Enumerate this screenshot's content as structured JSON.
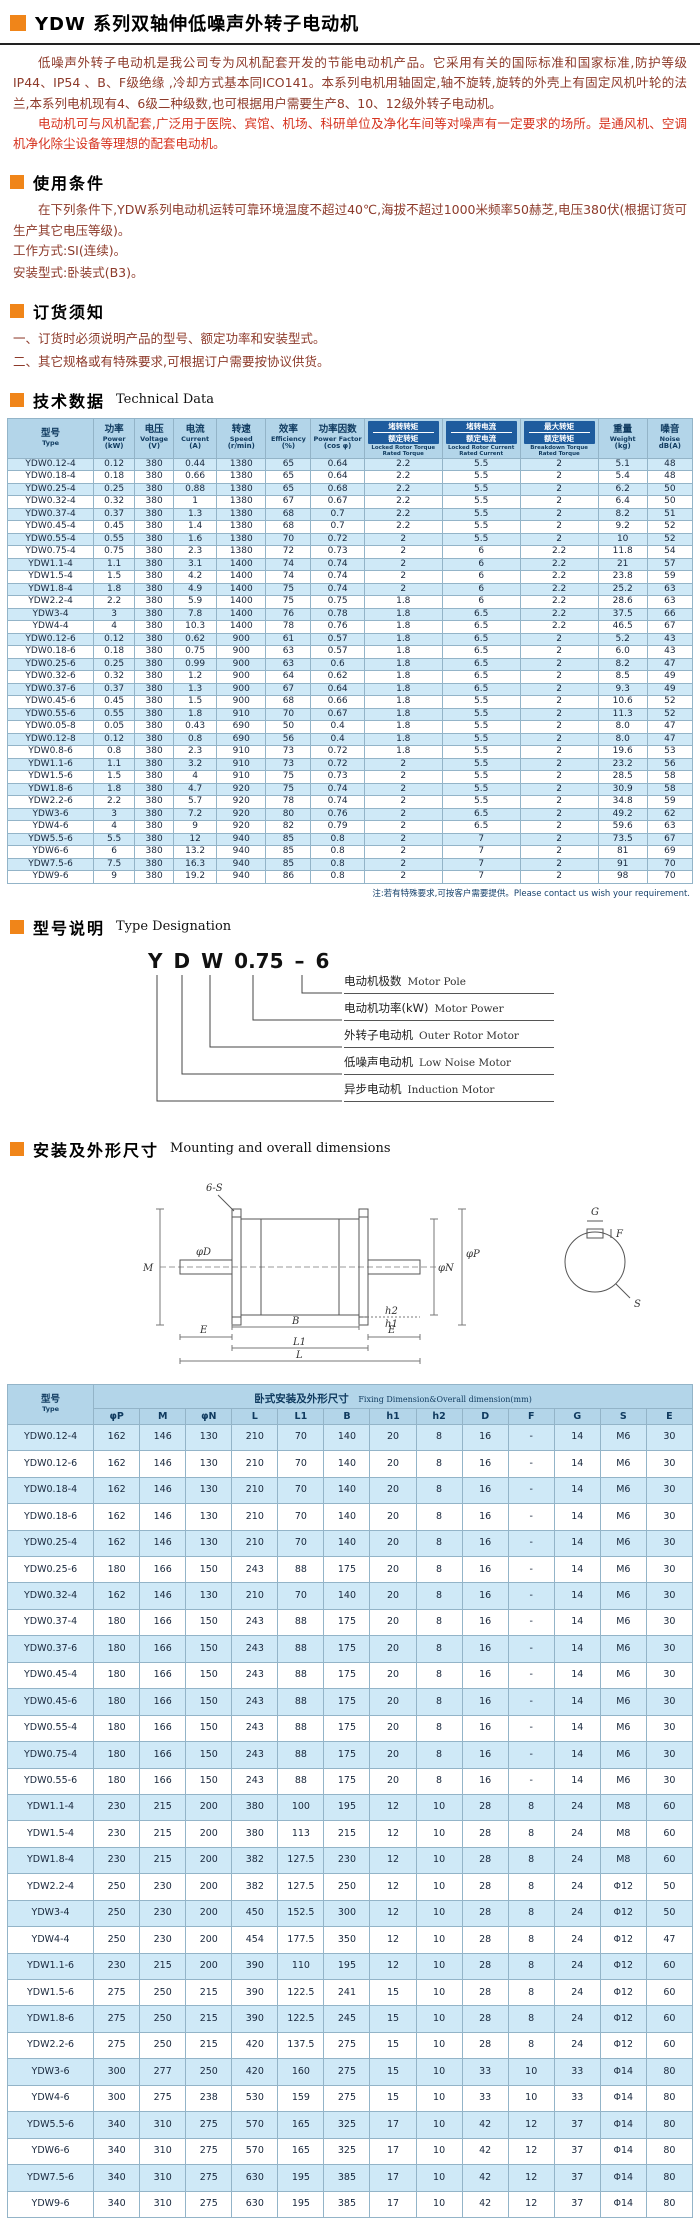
{
  "colors": {
    "accent_orange": "#f08519",
    "text_maroon": "#8d3a2a",
    "text_red": "#d6321e",
    "table_header_blue": "#b3d5e9",
    "table_row_blue": "#cfe9f7",
    "ratio_box_blue": "#1e5c9e"
  },
  "page": {
    "title": "YDW 系列双轴伸低噪声外转子电动机",
    "intro_p1": "低噪声外转子电动机是我公司专为风机配套开发的节能电动机产品。它采用有关的国际标准和国家标准,防护等级IP44、IP54 、B、F级绝缘 ,冷却方式基本同ICO141。本系列电机用轴固定,轴不旋转,旋转的外壳上有固定风机叶轮的法兰,本系列电机现有4、6级二种级数,也可根据用户需要生产8、10、12级外转子电动机。",
    "intro_p2": "电动机可与风机配套,广泛用于医院、宾馆、机场、科研单位及净化车间等对噪声有一定要求的场所。是通风机、空调机净化除尘设备等理想的配套电动机。"
  },
  "sections": {
    "usage": {
      "title": "使用条件",
      "body": "在下列条件下,YDW系列电动机运转可靠环境温度不超过40℃,海拔不超过1000米频率50赫芝,电压380伏(根据订货可生产其它电压等级)。",
      "work_mode": "工作方式:SI(连续)。",
      "mount_type": "安装型式:卧装式(B3)。"
    },
    "ordering": {
      "title": "订货须知",
      "line1": "一、订货时必须说明产品的型号、额定功率和安装型式。",
      "line2": "二、其它规格或有特殊要求,可根据订户需要按协议供货。"
    },
    "technical": {
      "title": "技术数据",
      "title_en": "Technical Data",
      "note": "注:若有特殊要求,可按客户需要提供。Please contact us wish your requirement."
    },
    "designation": {
      "title": "型号说明",
      "title_en": "Type Designation",
      "code": [
        "Y",
        "D",
        "W",
        "0.75",
        "–",
        "6"
      ],
      "labels": [
        {
          "zh": "电动机极数",
          "en": "Motor Pole"
        },
        {
          "zh": "电动机功率(kW)",
          "en": "Motor Power"
        },
        {
          "zh": "外转子电动机",
          "en": "Outer Rotor Motor"
        },
        {
          "zh": "低噪声电动机",
          "en": "Low Noise Motor"
        },
        {
          "zh": "异步电动机",
          "en": "Induction Motor"
        }
      ]
    },
    "mounting": {
      "title": "安装及外形尺寸",
      "title_en": "Mounting and overall dimensions"
    }
  },
  "drawing": {
    "six_s": "6-S",
    "m": "M",
    "d": "φD",
    "e_left": "E",
    "e_right": "E",
    "n": "φN",
    "p": "φP",
    "b": "B",
    "h1": "h1",
    "h2": "h2",
    "l1": "L1",
    "l": "L",
    "g": "G",
    "f": "F",
    "s": "S"
  },
  "tech_table": {
    "model_header": {
      "zh": "型号",
      "en": "Type"
    },
    "columns": [
      {
        "zh": "功率",
        "en": "Power",
        "unit": "(kW)"
      },
      {
        "zh": "电压",
        "en": "Voltage",
        "unit": "(V)"
      },
      {
        "zh": "电流",
        "en": "Current",
        "unit": "(A)"
      },
      {
        "zh": "转速",
        "en": "Speed",
        "unit": "(r/min)"
      },
      {
        "zh": "效率",
        "en": "Efficiency",
        "unit": "(%)"
      },
      {
        "zh": "功率因数",
        "en": "Power Factor",
        "unit": "(cos φ)"
      }
    ],
    "ratio_columns": [
      {
        "top": "堵转转矩",
        "bottom": "额定转矩",
        "en": "Locked Rotor Torque Rated Torque"
      },
      {
        "top": "堵转电流",
        "bottom": "额定电流",
        "en": "Locked Rotor Current Rated Current"
      },
      {
        "top": "最大转矩",
        "bottom": "额定转矩",
        "en": "Breakdown Torque Rated Torque"
      }
    ],
    "tail_columns": [
      {
        "zh": "重量",
        "en": "Weight",
        "unit": "(kg)"
      },
      {
        "zh": "噪音",
        "en": "Noise",
        "unit": "dB(A)"
      }
    ],
    "rows": [
      [
        "YDW0.12-4",
        "0.12",
        "380",
        "0.44",
        "1380",
        "65",
        "0.64",
        "2.2",
        "5.5",
        "2",
        "5.1",
        "48"
      ],
      [
        "YDW0.18-4",
        "0.18",
        "380",
        "0.66",
        "1380",
        "65",
        "0.64",
        "2.2",
        "5.5",
        "2",
        "5.4",
        "48"
      ],
      [
        "YDW0.25-4",
        "0.25",
        "380",
        "0.88",
        "1380",
        "65",
        "0.68",
        "2.2",
        "5.5",
        "2",
        "6.2",
        "50"
      ],
      [
        "YDW0.32-4",
        "0.32",
        "380",
        "1",
        "1380",
        "67",
        "0.67",
        "2.2",
        "5.5",
        "2",
        "6.4",
        "50"
      ],
      [
        "YDW0.37-4",
        "0.37",
        "380",
        "1.3",
        "1380",
        "68",
        "0.7",
        "2.2",
        "5.5",
        "2",
        "8.2",
        "51"
      ],
      [
        "YDW0.45-4",
        "0.45",
        "380",
        "1.4",
        "1380",
        "68",
        "0.7",
        "2.2",
        "5.5",
        "2",
        "9.2",
        "52"
      ],
      [
        "YDW0.55-4",
        "0.55",
        "380",
        "1.6",
        "1380",
        "70",
        "0.72",
        "2",
        "5.5",
        "2",
        "10",
        "52"
      ],
      [
        "YDW0.75-4",
        "0.75",
        "380",
        "2.3",
        "1380",
        "72",
        "0.73",
        "2",
        "6",
        "2.2",
        "11.8",
        "54"
      ],
      [
        "YDW1.1-4",
        "1.1",
        "380",
        "3.1",
        "1400",
        "74",
        "0.74",
        "2",
        "6",
        "2.2",
        "21",
        "57"
      ],
      [
        "YDW1.5-4",
        "1.5",
        "380",
        "4.2",
        "1400",
        "74",
        "0.74",
        "2",
        "6",
        "2.2",
        "23.8",
        "59"
      ],
      [
        "YDW1.8-4",
        "1.8",
        "380",
        "4.9",
        "1400",
        "75",
        "0.74",
        "2",
        "6",
        "2.2",
        "25.2",
        "63"
      ],
      [
        "YDW2.2-4",
        "2.2",
        "380",
        "5.9",
        "1400",
        "75",
        "0.75",
        "1.8",
        "6",
        "2.2",
        "28.6",
        "63"
      ],
      [
        "YDW3-4",
        "3",
        "380",
        "7.8",
        "1400",
        "76",
        "0.78",
        "1.8",
        "6.5",
        "2.2",
        "37.5",
        "66"
      ],
      [
        "YDW4-4",
        "4",
        "380",
        "10.3",
        "1400",
        "78",
        "0.76",
        "1.8",
        "6.5",
        "2.2",
        "46.5",
        "67"
      ],
      [
        "YDW0.12-6",
        "0.12",
        "380",
        "0.62",
        "900",
        "61",
        "0.57",
        "1.8",
        "6.5",
        "2",
        "5.2",
        "43"
      ],
      [
        "YDW0.18-6",
        "0.18",
        "380",
        "0.75",
        "900",
        "63",
        "0.57",
        "1.8",
        "6.5",
        "2",
        "6.0",
        "43"
      ],
      [
        "YDW0.25-6",
        "0.25",
        "380",
        "0.99",
        "900",
        "63",
        "0.6",
        "1.8",
        "6.5",
        "2",
        "8.2",
        "47"
      ],
      [
        "YDW0.32-6",
        "0.32",
        "380",
        "1.2",
        "900",
        "64",
        "0.62",
        "1.8",
        "6.5",
        "2",
        "8.5",
        "49"
      ],
      [
        "YDW0.37-6",
        "0.37",
        "380",
        "1.3",
        "900",
        "67",
        "0.64",
        "1.8",
        "6.5",
        "2",
        "9.3",
        "49"
      ],
      [
        "YDW0.45-6",
        "0.45",
        "380",
        "1.5",
        "900",
        "68",
        "0.66",
        "1.8",
        "5.5",
        "2",
        "10.6",
        "52"
      ],
      [
        "YDW0.55-6",
        "0.55",
        "380",
        "1.8",
        "910",
        "70",
        "0.67",
        "1.8",
        "5.5",
        "2",
        "11.3",
        "52"
      ],
      [
        "YDW0.05-8",
        "0.05",
        "380",
        "0.43",
        "690",
        "50",
        "0.4",
        "1.8",
        "5.5",
        "2",
        "8.0",
        "47"
      ],
      [
        "YDW0.12-8",
        "0.12",
        "380",
        "0.8",
        "690",
        "56",
        "0.4",
        "1.8",
        "5.5",
        "2",
        "8.0",
        "47"
      ],
      [
        "YDW0.8-6",
        "0.8",
        "380",
        "2.3",
        "910",
        "73",
        "0.72",
        "1.8",
        "5.5",
        "2",
        "19.6",
        "53"
      ],
      [
        "YDW1.1-6",
        "1.1",
        "380",
        "3.2",
        "910",
        "73",
        "0.72",
        "2",
        "5.5",
        "2",
        "23.2",
        "56"
      ],
      [
        "YDW1.5-6",
        "1.5",
        "380",
        "4",
        "910",
        "75",
        "0.73",
        "2",
        "5.5",
        "2",
        "28.5",
        "58"
      ],
      [
        "YDW1.8-6",
        "1.8",
        "380",
        "4.7",
        "920",
        "75",
        "0.74",
        "2",
        "5.5",
        "2",
        "30.9",
        "58"
      ],
      [
        "YDW2.2-6",
        "2.2",
        "380",
        "5.7",
        "920",
        "78",
        "0.74",
        "2",
        "5.5",
        "2",
        "34.8",
        "59"
      ],
      [
        "YDW3-6",
        "3",
        "380",
        "7.2",
        "920",
        "80",
        "0.76",
        "2",
        "6.5",
        "2",
        "49.2",
        "62"
      ],
      [
        "YDW4-6",
        "4",
        "380",
        "9",
        "920",
        "82",
        "0.79",
        "2",
        "6.5",
        "2",
        "59.6",
        "63"
      ],
      [
        "YDW5.5-6",
        "5.5",
        "380",
        "12",
        "940",
        "85",
        "0.8",
        "2",
        "7",
        "2",
        "73.5",
        "67"
      ],
      [
        "YDW6-6",
        "6",
        "380",
        "13.2",
        "940",
        "85",
        "0.8",
        "2",
        "7",
        "2",
        "81",
        "69"
      ],
      [
        "YDW7.5-6",
        "7.5",
        "380",
        "16.3",
        "940",
        "85",
        "0.8",
        "2",
        "7",
        "2",
        "91",
        "70"
      ],
      [
        "YDW9-6",
        "9",
        "380",
        "19.2",
        "940",
        "86",
        "0.8",
        "2",
        "7",
        "2",
        "98",
        "70"
      ]
    ]
  },
  "dim_table": {
    "model_header": {
      "zh": "型号",
      "en": "Type"
    },
    "group_title": "卧式安装及外形尺寸",
    "group_title_en": "Fixing Dimension&Overall dimension(mm)",
    "columns": [
      "φP",
      "M",
      "φN",
      "L",
      "L1",
      "B",
      "h1",
      "h2",
      "D",
      "F",
      "G",
      "S",
      "E"
    ],
    "rows": [
      [
        "YDW0.12-4",
        "162",
        "146",
        "130",
        "210",
        "70",
        "140",
        "20",
        "8",
        "16",
        "-",
        "14",
        "M6",
        "30"
      ],
      [
        "YDW0.12-6",
        "162",
        "146",
        "130",
        "210",
        "70",
        "140",
        "20",
        "8",
        "16",
        "-",
        "14",
        "M6",
        "30"
      ],
      [
        "YDW0.18-4",
        "162",
        "146",
        "130",
        "210",
        "70",
        "140",
        "20",
        "8",
        "16",
        "-",
        "14",
        "M6",
        "30"
      ],
      [
        "YDW0.18-6",
        "162",
        "146",
        "130",
        "210",
        "70",
        "140",
        "20",
        "8",
        "16",
        "-",
        "14",
        "M6",
        "30"
      ],
      [
        "YDW0.25-4",
        "162",
        "146",
        "130",
        "210",
        "70",
        "140",
        "20",
        "8",
        "16",
        "-",
        "14",
        "M6",
        "30"
      ],
      [
        "YDW0.25-6",
        "180",
        "166",
        "150",
        "243",
        "88",
        "175",
        "20",
        "8",
        "16",
        "-",
        "14",
        "M6",
        "30"
      ],
      [
        "YDW0.32-4",
        "162",
        "146",
        "130",
        "210",
        "70",
        "140",
        "20",
        "8",
        "16",
        "-",
        "14",
        "M6",
        "30"
      ],
      [
        "YDW0.37-4",
        "180",
        "166",
        "150",
        "243",
        "88",
        "175",
        "20",
        "8",
        "16",
        "-",
        "14",
        "M6",
        "30"
      ],
      [
        "YDW0.37-6",
        "180",
        "166",
        "150",
        "243",
        "88",
        "175",
        "20",
        "8",
        "16",
        "-",
        "14",
        "M6",
        "30"
      ],
      [
        "YDW0.45-4",
        "180",
        "166",
        "150",
        "243",
        "88",
        "175",
        "20",
        "8",
        "16",
        "-",
        "14",
        "M6",
        "30"
      ],
      [
        "YDW0.45-6",
        "180",
        "166",
        "150",
        "243",
        "88",
        "175",
        "20",
        "8",
        "16",
        "-",
        "14",
        "M6",
        "30"
      ],
      [
        "YDW0.55-4",
        "180",
        "166",
        "150",
        "243",
        "88",
        "175",
        "20",
        "8",
        "16",
        "-",
        "14",
        "M6",
        "30"
      ],
      [
        "YDW0.75-4",
        "180",
        "166",
        "150",
        "243",
        "88",
        "175",
        "20",
        "8",
        "16",
        "-",
        "14",
        "M6",
        "30"
      ],
      [
        "YDW0.55-6",
        "180",
        "166",
        "150",
        "243",
        "88",
        "175",
        "20",
        "8",
        "16",
        "-",
        "14",
        "M6",
        "30"
      ],
      [
        "YDW1.1-4",
        "230",
        "215",
        "200",
        "380",
        "100",
        "195",
        "12",
        "10",
        "28",
        "8",
        "24",
        "M8",
        "60"
      ],
      [
        "YDW1.5-4",
        "230",
        "215",
        "200",
        "380",
        "113",
        "215",
        "12",
        "10",
        "28",
        "8",
        "24",
        "M8",
        "60"
      ],
      [
        "YDW1.8-4",
        "230",
        "215",
        "200",
        "382",
        "127.5",
        "230",
        "12",
        "10",
        "28",
        "8",
        "24",
        "M8",
        "60"
      ],
      [
        "YDW2.2-4",
        "250",
        "230",
        "200",
        "382",
        "127.5",
        "250",
        "12",
        "10",
        "28",
        "8",
        "24",
        "Φ12",
        "50"
      ],
      [
        "YDW3-4",
        "250",
        "230",
        "200",
        "450",
        "152.5",
        "300",
        "12",
        "10",
        "28",
        "8",
        "24",
        "Φ12",
        "50"
      ],
      [
        "YDW4-4",
        "250",
        "230",
        "200",
        "454",
        "177.5",
        "350",
        "12",
        "10",
        "28",
        "8",
        "24",
        "Φ12",
        "47"
      ],
      [
        "YDW1.1-6",
        "230",
        "215",
        "200",
        "390",
        "110",
        "195",
        "12",
        "10",
        "28",
        "8",
        "24",
        "Φ12",
        "60"
      ],
      [
        "YDW1.5-6",
        "275",
        "250",
        "215",
        "390",
        "122.5",
        "241",
        "15",
        "10",
        "28",
        "8",
        "24",
        "Φ12",
        "60"
      ],
      [
        "YDW1.8-6",
        "275",
        "250",
        "215",
        "390",
        "122.5",
        "245",
        "15",
        "10",
        "28",
        "8",
        "24",
        "Φ12",
        "60"
      ],
      [
        "YDW2.2-6",
        "275",
        "250",
        "215",
        "420",
        "137.5",
        "275",
        "15",
        "10",
        "28",
        "8",
        "24",
        "Φ12",
        "60"
      ],
      [
        "YDW3-6",
        "300",
        "277",
        "250",
        "420",
        "160",
        "275",
        "15",
        "10",
        "33",
        "10",
        "33",
        "Φ14",
        "80"
      ],
      [
        "YDW4-6",
        "300",
        "275",
        "238",
        "530",
        "159",
        "275",
        "15",
        "10",
        "33",
        "10",
        "33",
        "Φ14",
        "80"
      ],
      [
        "YDW5.5-6",
        "340",
        "310",
        "275",
        "570",
        "165",
        "325",
        "17",
        "10",
        "42",
        "12",
        "37",
        "Φ14",
        "80"
      ],
      [
        "YDW6-6",
        "340",
        "310",
        "275",
        "570",
        "165",
        "325",
        "17",
        "10",
        "42",
        "12",
        "37",
        "Φ14",
        "80"
      ],
      [
        "YDW7.5-6",
        "340",
        "310",
        "275",
        "630",
        "195",
        "385",
        "17",
        "10",
        "42",
        "12",
        "37",
        "Φ14",
        "80"
      ],
      [
        "YDW9-6",
        "340",
        "310",
        "275",
        "630",
        "195",
        "385",
        "17",
        "10",
        "42",
        "12",
        "37",
        "Φ14",
        "80"
      ]
    ]
  }
}
